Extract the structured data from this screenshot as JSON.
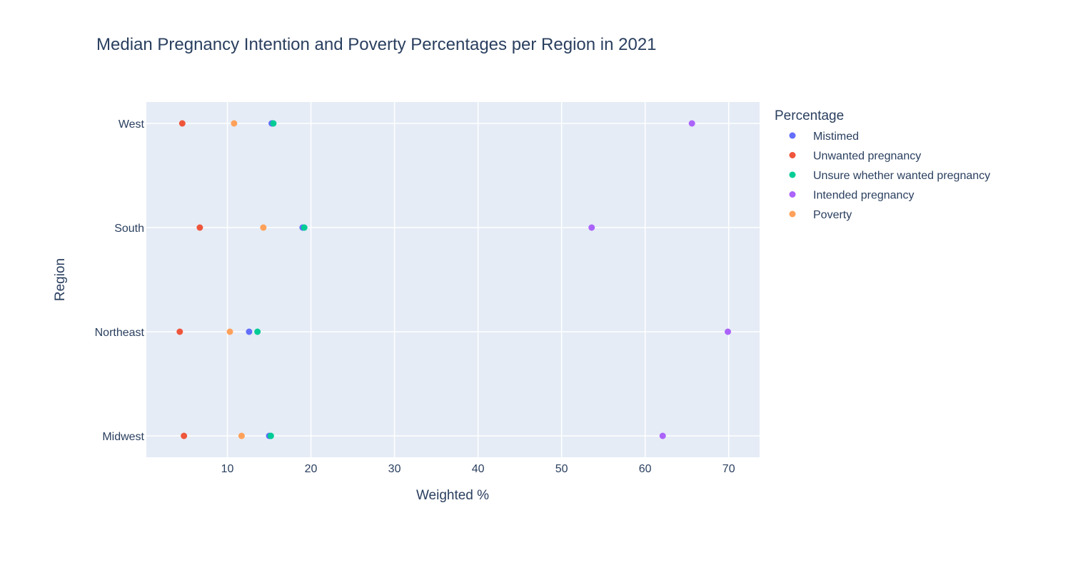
{
  "chart_data": {
    "type": "scatter",
    "title": "Median Pregnancy Intention and Poverty Percentages per Region in 2021",
    "xlabel": "Weighted %",
    "ylabel": "Region",
    "xlim": [
      0.3,
      73.7
    ],
    "xticks": [
      10,
      20,
      30,
      40,
      50,
      60,
      70
    ],
    "categories": [
      "Midwest",
      "Northeast",
      "South",
      "West"
    ],
    "grid": true,
    "legend_title": "Percentage",
    "legend_position": "right",
    "series": [
      {
        "name": "Mistimed",
        "color": "#636efa",
        "points": [
          {
            "y": "West",
            "x": 15.3
          },
          {
            "y": "South",
            "x": 19.0
          },
          {
            "y": "Northeast",
            "x": 12.6
          },
          {
            "y": "Midwest",
            "x": 15.0
          }
        ]
      },
      {
        "name": "Unwanted pregnancy",
        "color": "#EF553B",
        "points": [
          {
            "y": "West",
            "x": 4.6
          },
          {
            "y": "South",
            "x": 6.7
          },
          {
            "y": "Northeast",
            "x": 4.3
          },
          {
            "y": "Midwest",
            "x": 4.8
          }
        ]
      },
      {
        "name": "Unsure whether wanted pregnancy",
        "color": "#00cc96",
        "points": [
          {
            "y": "West",
            "x": 15.5
          },
          {
            "y": "South",
            "x": 19.2
          },
          {
            "y": "Northeast",
            "x": 13.6
          },
          {
            "y": "Midwest",
            "x": 15.2
          }
        ]
      },
      {
        "name": "Intended pregnancy",
        "color": "#ab63fa",
        "points": [
          {
            "y": "West",
            "x": 65.6
          },
          {
            "y": "South",
            "x": 53.6
          },
          {
            "y": "Northeast",
            "x": 69.9
          },
          {
            "y": "Midwest",
            "x": 62.1
          }
        ]
      },
      {
        "name": "Poverty",
        "color": "#FFA15A",
        "points": [
          {
            "y": "West",
            "x": 10.8
          },
          {
            "y": "South",
            "x": 14.3
          },
          {
            "y": "Northeast",
            "x": 10.3
          },
          {
            "y": "Midwest",
            "x": 11.7
          }
        ]
      }
    ]
  }
}
